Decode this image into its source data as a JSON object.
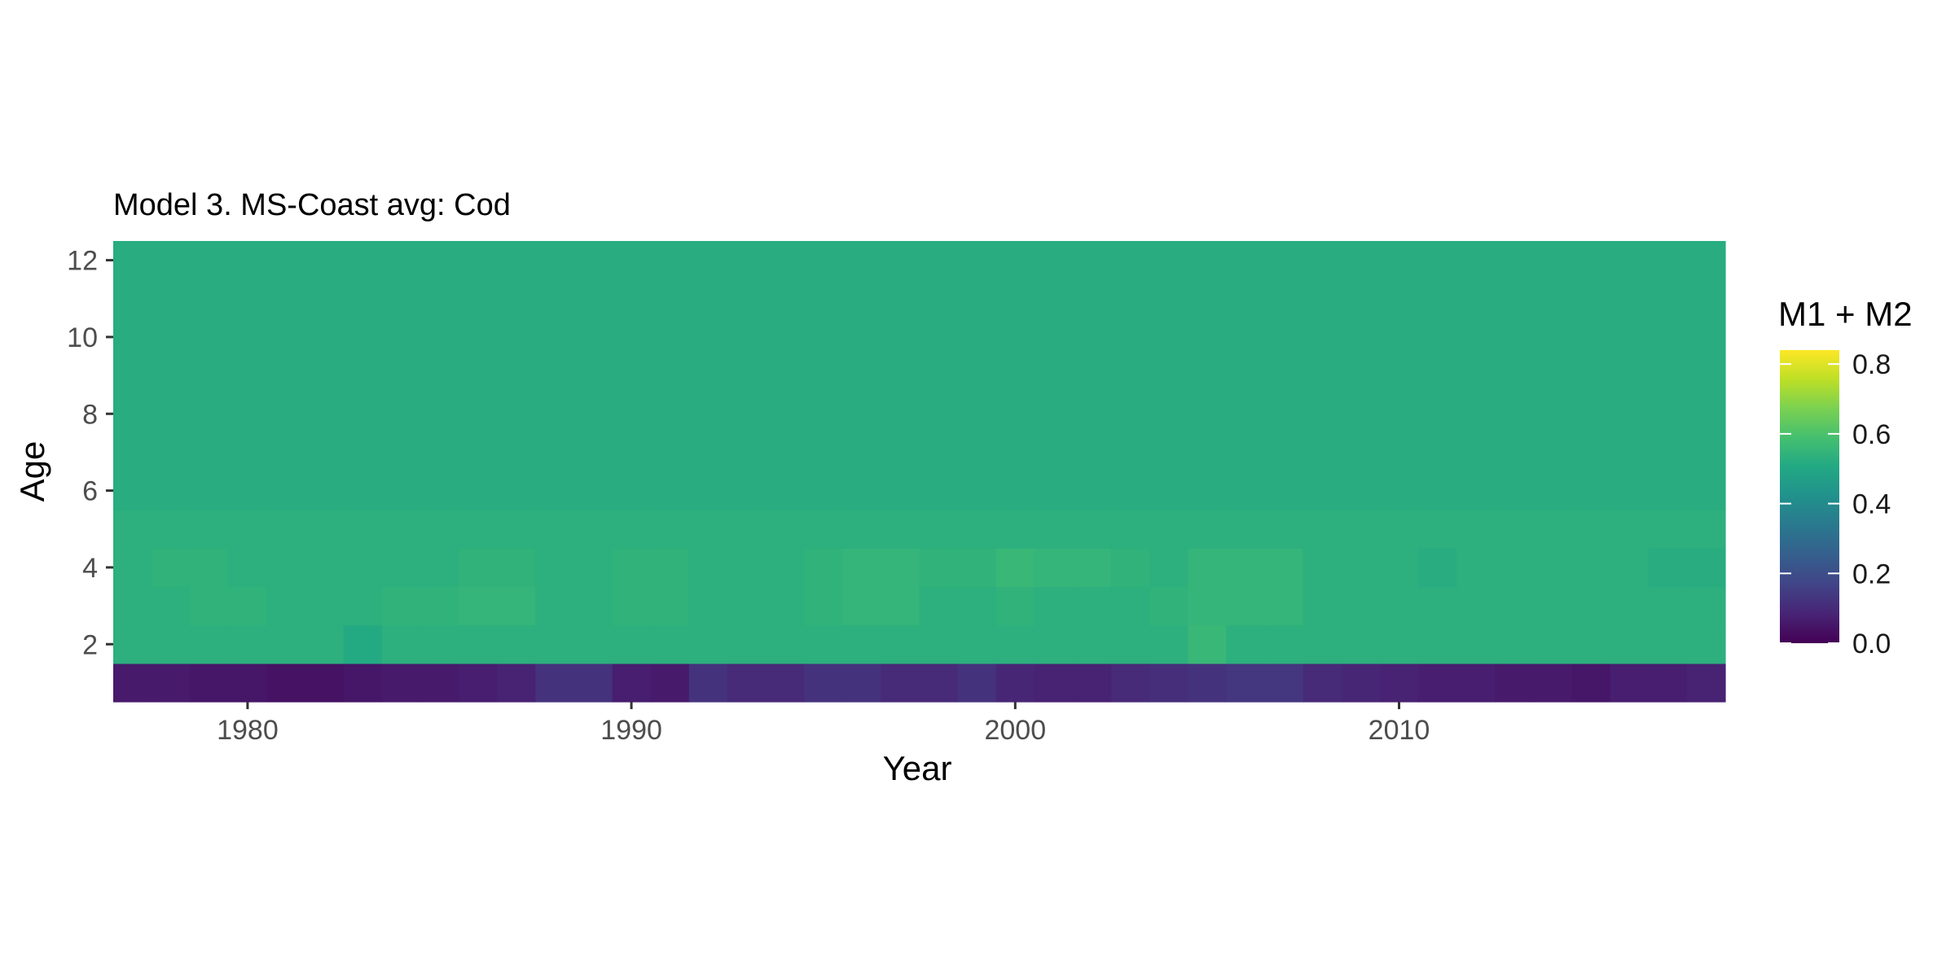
{
  "chart_data": {
    "type": "heatmap",
    "title": "Model 3. MS-Coast avg: Cod",
    "xlabel": "Year",
    "ylabel": "Age",
    "x_range": [
      1977,
      2018
    ],
    "y_range": [
      1,
      12
    ],
    "x_ticks": [
      1980,
      1990,
      2000,
      2010
    ],
    "x_tick_labels": [
      "1980",
      "1990",
      "2000",
      "2010"
    ],
    "y_ticks": [
      2,
      4,
      6,
      8,
      10,
      12
    ],
    "y_tick_labels": [
      "2",
      "4",
      "6",
      "8",
      "10",
      "12"
    ],
    "legend": {
      "title": "M1 + M2",
      "position": "right",
      "limits": [
        0,
        0.84
      ],
      "ticks": [
        0.0,
        0.2,
        0.4,
        0.6,
        0.8
      ],
      "tick_labels": [
        "0.0",
        "0.2",
        "0.4",
        "0.6",
        "0.8"
      ],
      "palette": "viridis"
    },
    "years": [
      1977,
      1978,
      1979,
      1980,
      1981,
      1982,
      1983,
      1984,
      1985,
      1986,
      1987,
      1988,
      1989,
      1990,
      1991,
      1992,
      1993,
      1994,
      1995,
      1996,
      1997,
      1998,
      1999,
      2000,
      2001,
      2002,
      2003,
      2004,
      2005,
      2006,
      2007,
      2008,
      2009,
      2010,
      2011,
      2012,
      2013,
      2014,
      2015,
      2016,
      2017,
      2018
    ],
    "ages": [
      1,
      2,
      3,
      4,
      5,
      6,
      7,
      8,
      9,
      10,
      11,
      12
    ],
    "age_1_values": [
      0.06,
      0.06,
      0.05,
      0.05,
      0.04,
      0.04,
      0.05,
      0.06,
      0.06,
      0.07,
      0.08,
      0.12,
      0.12,
      0.07,
      0.06,
      0.12,
      0.1,
      0.1,
      0.12,
      0.12,
      0.1,
      0.1,
      0.12,
      0.09,
      0.08,
      0.08,
      0.1,
      0.11,
      0.12,
      0.13,
      0.13,
      0.1,
      0.09,
      0.08,
      0.07,
      0.07,
      0.06,
      0.06,
      0.05,
      0.07,
      0.07,
      0.08
    ],
    "age_2_values": [
      0.53,
      0.53,
      0.53,
      0.53,
      0.53,
      0.53,
      0.51,
      0.53,
      0.53,
      0.53,
      0.53,
      0.53,
      0.53,
      0.53,
      0.53,
      0.53,
      0.53,
      0.53,
      0.53,
      0.53,
      0.53,
      0.53,
      0.53,
      0.53,
      0.53,
      0.53,
      0.53,
      0.53,
      0.56,
      0.53,
      0.53,
      0.53,
      0.53,
      0.53,
      0.53,
      0.53,
      0.53,
      0.53,
      0.53,
      0.53,
      0.53,
      0.53
    ],
    "age_3_values": [
      0.53,
      0.53,
      0.54,
      0.54,
      0.53,
      0.53,
      0.53,
      0.54,
      0.54,
      0.55,
      0.55,
      0.53,
      0.53,
      0.54,
      0.54,
      0.53,
      0.53,
      0.53,
      0.54,
      0.55,
      0.55,
      0.53,
      0.53,
      0.54,
      0.53,
      0.53,
      0.53,
      0.54,
      0.55,
      0.55,
      0.55,
      0.53,
      0.53,
      0.53,
      0.53,
      0.53,
      0.53,
      0.53,
      0.53,
      0.53,
      0.53,
      0.53
    ],
    "age_4_values": [
      0.53,
      0.54,
      0.54,
      0.53,
      0.53,
      0.53,
      0.53,
      0.53,
      0.53,
      0.54,
      0.54,
      0.53,
      0.53,
      0.54,
      0.54,
      0.53,
      0.53,
      0.53,
      0.54,
      0.55,
      0.55,
      0.54,
      0.54,
      0.56,
      0.55,
      0.55,
      0.54,
      0.53,
      0.55,
      0.55,
      0.55,
      0.53,
      0.53,
      0.53,
      0.52,
      0.53,
      0.53,
      0.53,
      0.53,
      0.53,
      0.52,
      0.52
    ],
    "age_5_values": [
      0.53,
      0.53,
      0.53,
      0.53,
      0.53,
      0.53,
      0.53,
      0.53,
      0.53,
      0.53,
      0.53,
      0.53,
      0.53,
      0.53,
      0.53,
      0.53,
      0.53,
      0.53,
      0.53,
      0.53,
      0.53,
      0.53,
      0.53,
      0.53,
      0.53,
      0.53,
      0.53,
      0.53,
      0.53,
      0.53,
      0.53,
      0.53,
      0.53,
      0.53,
      0.53,
      0.53,
      0.53,
      0.53,
      0.53,
      0.53,
      0.53,
      0.53
    ],
    "age_6_to_12_value": 0.52
  }
}
